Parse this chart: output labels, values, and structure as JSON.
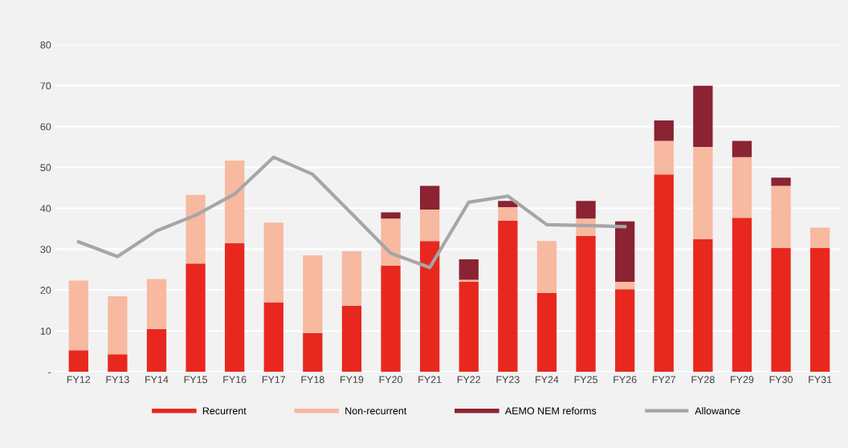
{
  "chart_data": {
    "type": "bar",
    "stacked": true,
    "categories": [
      "FY12",
      "FY13",
      "FY14",
      "FY15",
      "FY16",
      "FY17",
      "FY18",
      "FY19",
      "FY20",
      "FY21",
      "FY22",
      "FY23",
      "FY24",
      "FY25",
      "FY26",
      "FY27",
      "FY28",
      "FY29",
      "FY30",
      "FY31"
    ],
    "series": [
      {
        "name": "Recurrent",
        "color": "#e8281f",
        "values": [
          5.3,
          4.3,
          10.5,
          26.5,
          31.5,
          17,
          9.5,
          16.2,
          26,
          32,
          22,
          37,
          19.3,
          33.2,
          20.2,
          48.3,
          32.5,
          37.7,
          30.3,
          30.3
        ]
      },
      {
        "name": "Non-recurrent",
        "color": "#f7b9a0",
        "values": [
          17,
          14.2,
          12.2,
          16.8,
          20.2,
          19.5,
          19,
          13.3,
          11.5,
          7.7,
          0.5,
          3.3,
          12.7,
          4.3,
          1.8,
          8.2,
          22.5,
          14.8,
          15.2,
          5
        ]
      },
      {
        "name": "AEMO NEM reforms",
        "color": "#8b2332",
        "values": [
          0,
          0,
          0,
          0,
          0,
          0,
          0,
          0,
          1.5,
          5.8,
          5,
          1.5,
          0,
          4.3,
          14.8,
          5,
          15,
          4,
          2,
          0
        ]
      },
      {
        "name": "Allowance",
        "type": "line",
        "color": "#a6a6a6",
        "values": [
          31.8,
          28.2,
          34.5,
          38.3,
          43.5,
          52.5,
          48.3,
          38.7,
          29,
          25.5,
          41.5,
          43,
          36,
          35.8,
          35.5,
          null,
          null,
          null,
          null,
          null
        ]
      }
    ],
    "ylim": [
      0,
      80
    ],
    "yticks": [
      {
        "value": 0,
        "label": "-"
      },
      10,
      20,
      30,
      40,
      50,
      60,
      70,
      80
    ],
    "grid": "y",
    "legend": "bottom",
    "marker": "none",
    "line_style": "solid"
  }
}
